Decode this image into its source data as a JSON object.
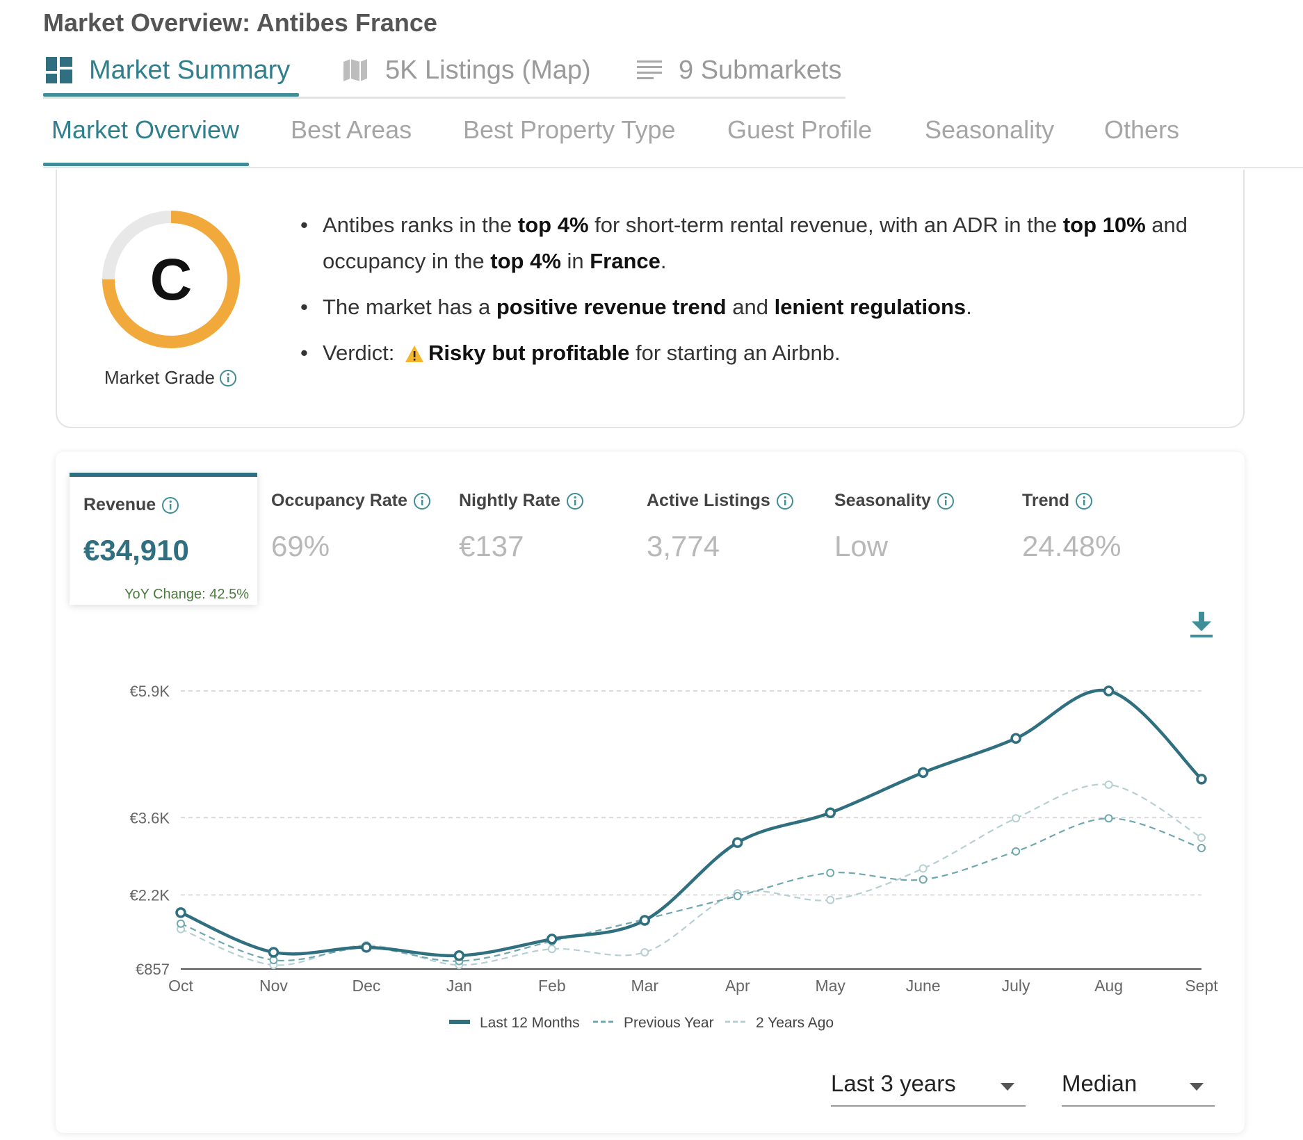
{
  "page": {
    "title": "Market Overview: Antibes France"
  },
  "main_tabs": [
    {
      "label": "Market Summary",
      "icon": "dashboard-icon",
      "active": true
    },
    {
      "label": "5K Listings (Map)",
      "icon": "map-icon",
      "active": false
    },
    {
      "label": "9 Submarkets",
      "icon": "list-icon",
      "active": false
    }
  ],
  "sub_tabs": [
    {
      "label": "Market Overview",
      "active": true
    },
    {
      "label": "Best Areas"
    },
    {
      "label": "Best Property Type"
    },
    {
      "label": "Guest Profile"
    },
    {
      "label": "Seasonality"
    },
    {
      "label": "Others"
    }
  ],
  "grade": {
    "letter": "C",
    "label": "Market Grade",
    "ring_fraction": 0.75,
    "ring_color": "#f2a93b",
    "track_color": "#e8e8e8"
  },
  "summary": {
    "b1": {
      "t1": "Antibes ranks in the ",
      "b1": "top 4%",
      "t2": " for short-term rental revenue, with an ADR in the ",
      "b2": "top 10%",
      "t3": " and occupancy in the ",
      "b3": "top 4%",
      "t4": " in ",
      "b4": "France",
      "t5": "."
    },
    "b2": {
      "t1": "The market has a ",
      "b1": "positive revenue trend",
      "t2": " and ",
      "b2": "lenient regulations",
      "t3": "."
    },
    "b3": {
      "t1": "Verdict: ",
      "b1": "Risky but profitable",
      "t2": " for starting an Airbnb."
    }
  },
  "metrics": [
    {
      "label": "Revenue",
      "value": "€34,910",
      "yoy": "YoY Change: 42.5%",
      "active": true
    },
    {
      "label": "Occupancy Rate",
      "value": "69%"
    },
    {
      "label": "Nightly Rate",
      "value": "€137"
    },
    {
      "label": "Active Listings",
      "value": "3,774"
    },
    {
      "label": "Seasonality",
      "value": "Low"
    },
    {
      "label": "Trend",
      "value": "24.48%"
    }
  ],
  "colors": {
    "accent": "#2f7f8c",
    "series_main": "#2f6f80",
    "series_prev": "#6ea7ad",
    "series_2y": "#b6cfd2"
  },
  "chart_data": {
    "type": "line",
    "categories": [
      "Oct",
      "Nov",
      "Dec",
      "Jan",
      "Feb",
      "Mar",
      "Apr",
      "May",
      "June",
      "July",
      "Aug",
      "Sept"
    ],
    "y_ticks": [
      857,
      2200,
      3600,
      5900
    ],
    "y_tick_labels": [
      "€857",
      "€2.2K",
      "€3.6K",
      "€5.9K"
    ],
    "ylim": [
      857,
      5900
    ],
    "grid": "horizontal dashed",
    "legend_position": "bottom",
    "series": [
      {
        "name": "Last 12 Months",
        "values": [
          1880,
          1160,
          1250,
          1100,
          1400,
          1740,
          3150,
          3690,
          4420,
          5040,
          5900,
          4300
        ]
      },
      {
        "name": "Previous Year",
        "values": [
          1680,
          1020,
          1240,
          1000,
          1360,
          1760,
          2180,
          2600,
          2480,
          2990,
          3590,
          3050
        ]
      },
      {
        "name": "2 Years Ago",
        "values": [
          1580,
          930,
          1290,
          930,
          1220,
          1160,
          2230,
          2110,
          2680,
          3590,
          4200,
          3240
        ]
      }
    ]
  },
  "controls": {
    "period": "Last 3 years",
    "stat": "Median"
  }
}
